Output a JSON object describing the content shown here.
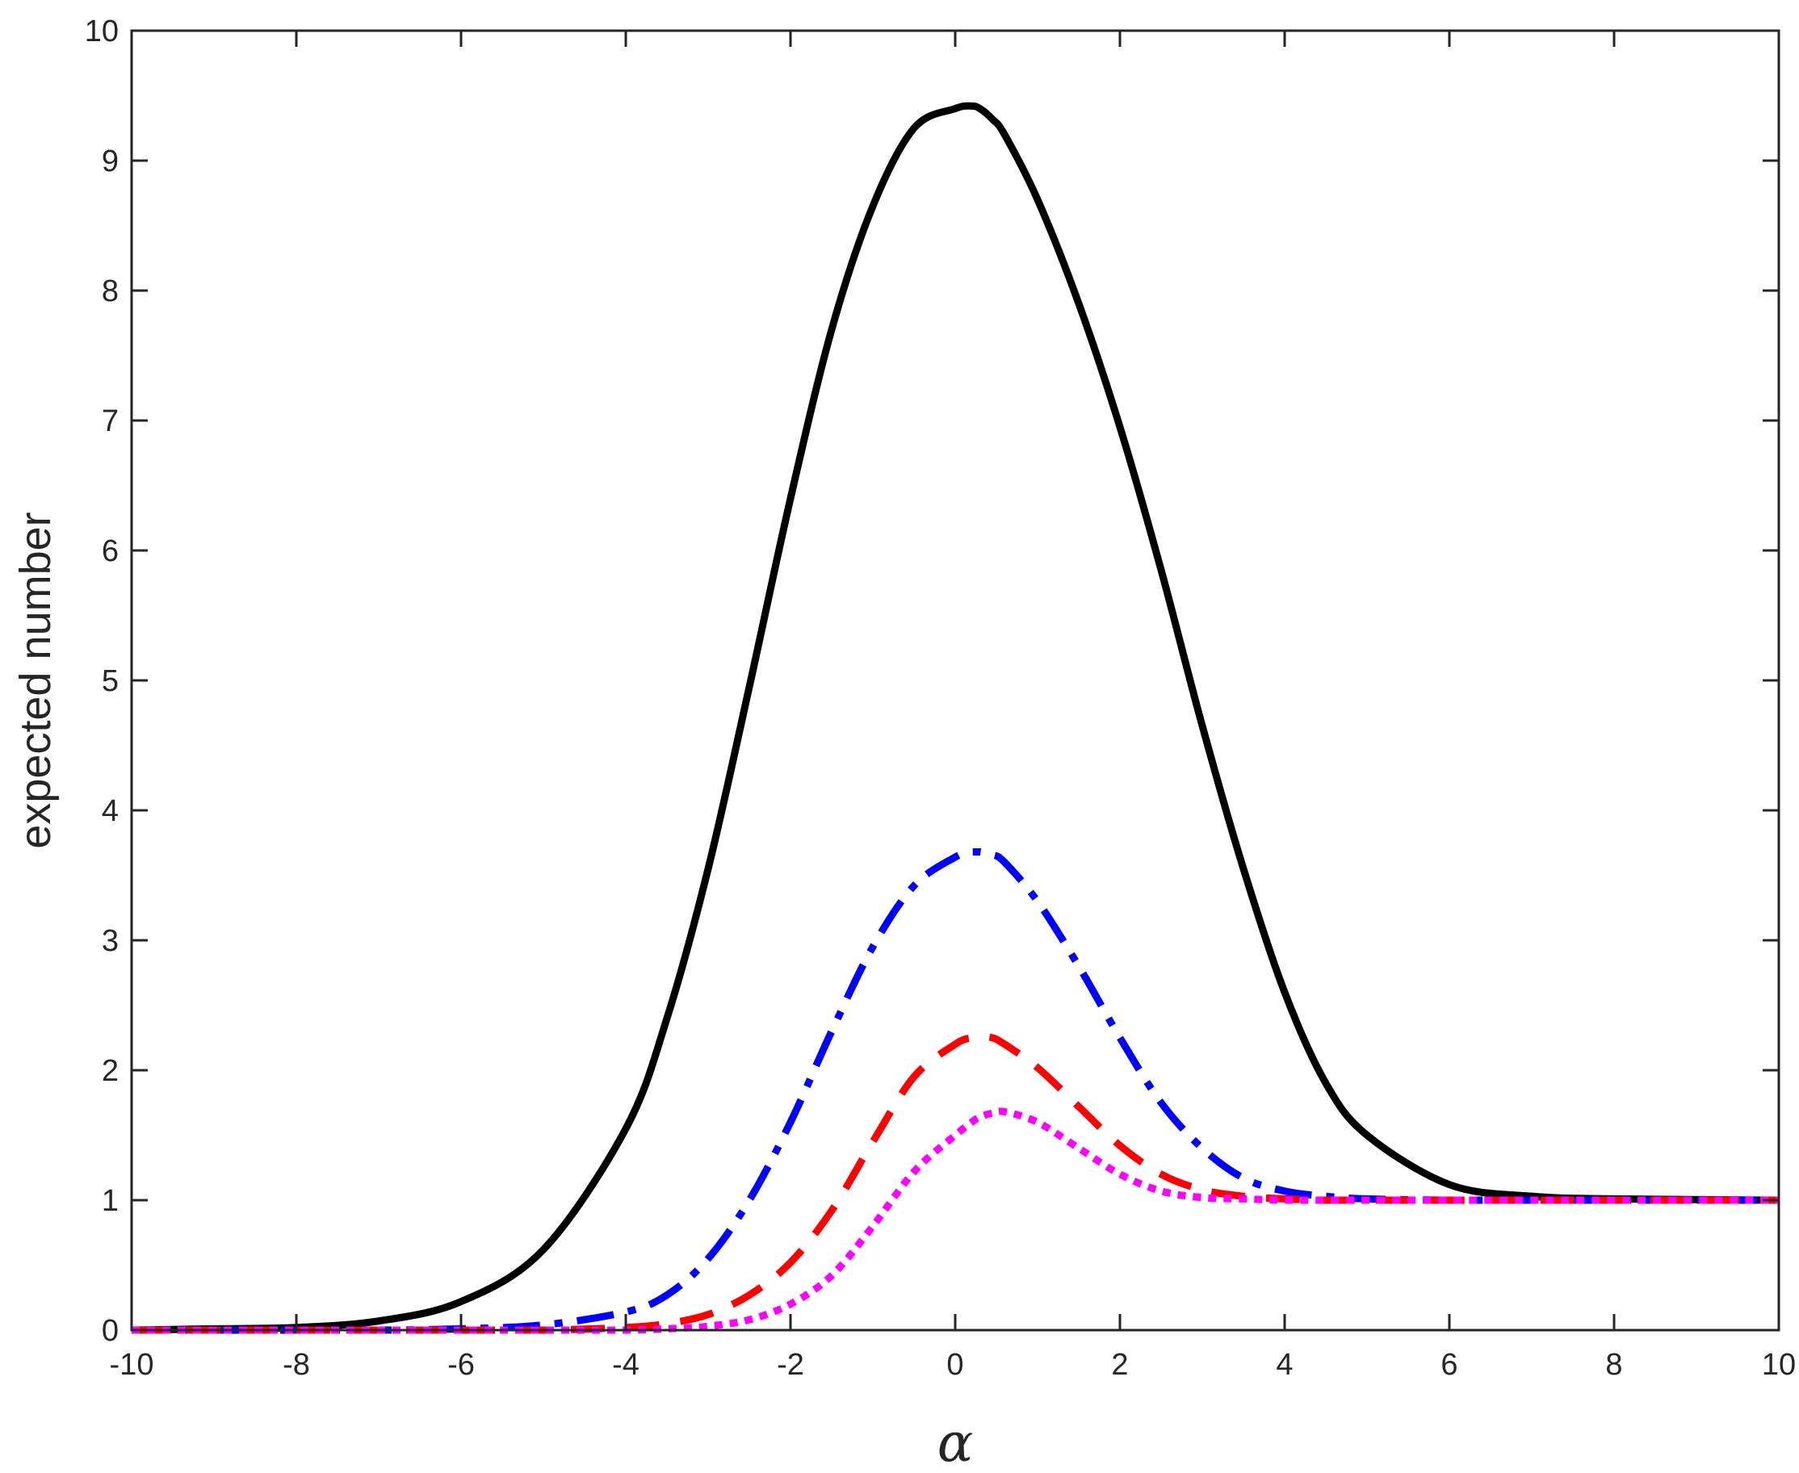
{
  "chart_data": {
    "type": "line",
    "title": "",
    "xlabel": "α",
    "ylabel": "expected number",
    "xlim": [
      -10,
      10
    ],
    "ylim": [
      0,
      10
    ],
    "xticks": [
      "-10",
      "-8",
      "-6",
      "-4",
      "-2",
      "0",
      "2",
      "4",
      "6",
      "8",
      "10"
    ],
    "yticks": [
      "0",
      "1",
      "2",
      "3",
      "4",
      "5",
      "6",
      "7",
      "8",
      "9",
      "10"
    ],
    "legend": "none",
    "grid": false,
    "x": [
      -10,
      -9,
      -8,
      -7,
      -6,
      -5,
      -4,
      -3.5,
      -3,
      -2.5,
      -2,
      -1.5,
      -1,
      -0.5,
      0,
      0.2,
      0.3,
      0.45,
      0.6,
      1,
      1.5,
      2,
      2.5,
      3,
      3.5,
      4,
      4.5,
      5,
      6,
      7,
      8,
      10
    ],
    "series": [
      {
        "color": "#000000",
        "style": "solid",
        "values": [
          0.0,
          0.01,
          0.02,
          0.07,
          0.22,
          0.62,
          1.55,
          2.4,
          3.55,
          4.95,
          6.4,
          7.7,
          8.65,
          9.25,
          9.4,
          9.42,
          9.4,
          9.32,
          9.2,
          8.7,
          7.9,
          6.95,
          5.85,
          4.65,
          3.55,
          2.6,
          1.9,
          1.5,
          1.12,
          1.03,
          1.01,
          1.0
        ]
      },
      {
        "color": "#0000ff",
        "style": "dashdot",
        "values": [
          0.0,
          0.0,
          0.0,
          0.0,
          0.01,
          0.04,
          0.14,
          0.27,
          0.55,
          1.0,
          1.6,
          2.3,
          2.95,
          3.42,
          3.64,
          3.68,
          3.68,
          3.66,
          3.6,
          3.3,
          2.8,
          2.25,
          1.75,
          1.4,
          1.17,
          1.07,
          1.03,
          1.01,
          1.0,
          1.0,
          1.0,
          1.0
        ]
      },
      {
        "color": "#ff0000",
        "style": "dashed",
        "values": [
          0.0,
          0.0,
          0.0,
          0.0,
          0.0,
          0.0,
          0.02,
          0.05,
          0.12,
          0.27,
          0.52,
          0.92,
          1.45,
          1.95,
          2.2,
          2.25,
          2.26,
          2.25,
          2.2,
          2.02,
          1.72,
          1.42,
          1.2,
          1.08,
          1.03,
          1.01,
          1.0,
          1.0,
          1.0,
          1.0,
          1.0,
          1.0
        ]
      },
      {
        "color": "#ff00ff",
        "style": "dotted",
        "values": [
          0.0,
          0.0,
          0.0,
          0.0,
          0.0,
          0.0,
          0.0,
          0.01,
          0.03,
          0.08,
          0.2,
          0.42,
          0.8,
          1.22,
          1.5,
          1.6,
          1.64,
          1.67,
          1.68,
          1.6,
          1.4,
          1.2,
          1.07,
          1.02,
          1.01,
          1.0,
          1.0,
          1.0,
          1.0,
          1.0,
          1.0,
          1.0
        ]
      }
    ]
  }
}
